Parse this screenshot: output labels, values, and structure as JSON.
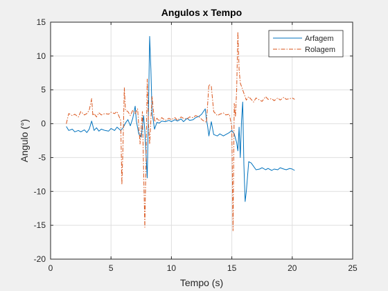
{
  "chart_data": {
    "type": "line",
    "title": "Angulos x Tempo",
    "xlabel": "Tempo (s)",
    "ylabel": "Angulo (°)",
    "xlim": [
      0,
      25
    ],
    "ylim": [
      -20,
      15
    ],
    "xticks": [
      0,
      5,
      10,
      15,
      20,
      25
    ],
    "yticks": [
      -20,
      -15,
      -10,
      -5,
      0,
      5,
      10,
      15
    ],
    "grid": true,
    "legend_position": "top-right",
    "colors": {
      "plot_bg": "#ffffff",
      "figure_bg": "#f0f0f0",
      "grid": "#dfdfdf",
      "axis": "#262626"
    },
    "series": [
      {
        "name": "Arfagem",
        "color": "#0072bd",
        "style": "solid",
        "x": [
          1.3,
          1.5,
          1.8,
          2.0,
          2.3,
          2.5,
          2.8,
          3.0,
          3.2,
          3.4,
          3.5,
          3.6,
          3.8,
          4.0,
          4.2,
          4.5,
          4.8,
          5.0,
          5.3,
          5.5,
          5.8,
          6.0,
          6.2,
          6.4,
          6.6,
          6.8,
          7.0,
          7.1,
          7.3,
          7.5,
          7.7,
          7.8,
          8.0,
          8.1,
          8.2,
          8.3,
          8.4,
          8.5,
          8.6,
          8.8,
          9.0,
          9.2,
          9.5,
          9.8,
          10.0,
          10.3,
          10.5,
          10.8,
          11.0,
          11.3,
          11.5,
          11.8,
          12.0,
          12.3,
          12.5,
          12.8,
          12.9,
          13.0,
          13.1,
          13.3,
          13.5,
          13.8,
          14.0,
          14.3,
          14.5,
          14.8,
          15.0,
          15.2,
          15.4,
          15.5,
          15.6,
          15.7,
          15.8,
          15.9,
          16.0,
          16.1,
          16.2,
          16.4,
          16.6,
          16.8,
          17.0,
          17.3,
          17.5,
          17.8,
          18.0,
          18.3,
          18.5,
          18.8,
          19.0,
          19.3,
          19.5,
          19.8,
          20.0,
          20.2
        ],
        "y": [
          -0.4,
          -1.0,
          -0.8,
          -1.2,
          -1.0,
          -1.2,
          -0.9,
          -1.3,
          -0.8,
          0.4,
          -0.3,
          -1.0,
          -0.6,
          -1.1,
          -0.8,
          -1.0,
          -1.1,
          -0.7,
          -1.0,
          -0.5,
          -1.0,
          -0.6,
          0.1,
          0.6,
          -0.3,
          0.8,
          2.6,
          0.4,
          -1.5,
          -2.0,
          1.2,
          -1.0,
          -8.0,
          2.0,
          12.9,
          8.0,
          1.5,
          0.5,
          -0.8,
          0.2,
          0.1,
          0.4,
          0.3,
          0.5,
          0.3,
          0.6,
          0.4,
          0.7,
          0.3,
          0.8,
          0.5,
          0.6,
          0.9,
          1.1,
          1.4,
          2.2,
          0.6,
          -0.4,
          -1.8,
          0.3,
          -1.6,
          -1.8,
          -1.5,
          -1.8,
          -1.6,
          -1.3,
          -1.0,
          -1.5,
          -2.8,
          -4.0,
          -0.5,
          -5.0,
          0.5,
          3.2,
          -6.0,
          -11.5,
          -10.0,
          -5.6,
          -5.8,
          -6.3,
          -6.8,
          -6.7,
          -6.5,
          -6.8,
          -6.6,
          -6.9,
          -6.7,
          -6.8,
          -6.5,
          -6.7,
          -6.8,
          -6.6,
          -6.7,
          -6.9
        ]
      },
      {
        "name": "Rolagem",
        "color": "#d95319",
        "style": "dashdot",
        "x": [
          1.3,
          1.5,
          1.8,
          2.0,
          2.3,
          2.5,
          2.8,
          3.0,
          3.2,
          3.4,
          3.5,
          3.6,
          3.8,
          4.0,
          4.2,
          4.5,
          4.8,
          5.0,
          5.3,
          5.5,
          5.8,
          5.9,
          6.0,
          6.1,
          6.2,
          6.4,
          6.6,
          6.8,
          7.0,
          7.2,
          7.4,
          7.6,
          7.8,
          7.9,
          8.0,
          8.1,
          8.2,
          8.4,
          8.6,
          8.8,
          9.0,
          9.2,
          9.5,
          9.8,
          10.0,
          10.3,
          10.5,
          10.8,
          11.0,
          11.3,
          11.5,
          11.8,
          12.0,
          12.3,
          12.6,
          12.9,
          13.1,
          13.3,
          13.5,
          13.8,
          14.0,
          14.3,
          14.5,
          14.8,
          15.0,
          15.1,
          15.2,
          15.3,
          15.4,
          15.5,
          15.6,
          15.7,
          15.8,
          16.0,
          16.2,
          16.4,
          16.6,
          16.8,
          17.0,
          17.3,
          17.5,
          17.8,
          18.0,
          18.3,
          18.5,
          18.8,
          19.0,
          19.3,
          19.5,
          19.8,
          20.0,
          20.2
        ],
        "y": [
          0.0,
          1.5,
          1.2,
          1.4,
          1.0,
          1.8,
          1.3,
          1.5,
          2.0,
          3.7,
          1.2,
          1.5,
          1.0,
          1.6,
          1.3,
          1.5,
          1.4,
          1.7,
          1.5,
          1.8,
          0.5,
          -9.0,
          -3.0,
          5.3,
          2.0,
          1.8,
          1.2,
          2.0,
          1.5,
          2.2,
          -3.0,
          1.8,
          -15.3,
          -5.0,
          6.6,
          0.0,
          -3.0,
          4.0,
          0.3,
          0.8,
          0.4,
          0.9,
          0.5,
          0.8,
          0.6,
          0.9,
          0.5,
          1.0,
          0.8,
          0.7,
          1.0,
          0.9,
          1.2,
          1.0,
          0.5,
          0.2,
          5.8,
          5.5,
          1.8,
          1.2,
          1.4,
          1.6,
          1.3,
          1.4,
          -0.5,
          -15.8,
          3.0,
          1.0,
          5.0,
          13.6,
          8.0,
          6.0,
          5.5,
          4.5,
          3.5,
          4.0,
          3.6,
          3.2,
          3.8,
          3.5,
          3.3,
          4.0,
          3.6,
          3.7,
          3.4,
          3.8,
          3.5,
          3.9,
          3.6,
          3.7,
          3.8,
          3.6
        ]
      }
    ]
  }
}
